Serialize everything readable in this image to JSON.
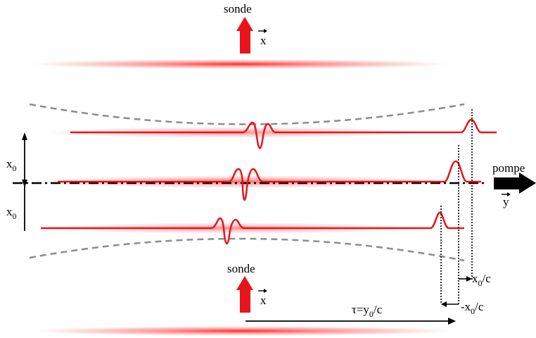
{
  "labels": {
    "probe_top": "sonde",
    "probe_top_axis": "x",
    "probe_bottom": "sonde",
    "probe_bottom_axis": "x",
    "x0_upper": "x",
    "x0_upper_sub": "0",
    "x0_lower": "x",
    "x0_lower_sub": "0",
    "pump": "pompe",
    "pump_axis": "y",
    "tau_prefix": "τ=y",
    "tau_sub": "0",
    "tau_suffix": "/c",
    "plus_x0c_prefix": "x",
    "plus_x0c_sub": "0",
    "plus_x0c_suffix": "/c",
    "minus_x0c_prefix": "-x",
    "minus_x0c_sub": "0",
    "minus_x0c_suffix": "/c"
  },
  "colors": {
    "pulse": "#e8141c",
    "beam_glow": "#ff2020",
    "envelope": "#8c8c8c",
    "axis": "#000000",
    "pump_arrow": "#000000"
  }
}
